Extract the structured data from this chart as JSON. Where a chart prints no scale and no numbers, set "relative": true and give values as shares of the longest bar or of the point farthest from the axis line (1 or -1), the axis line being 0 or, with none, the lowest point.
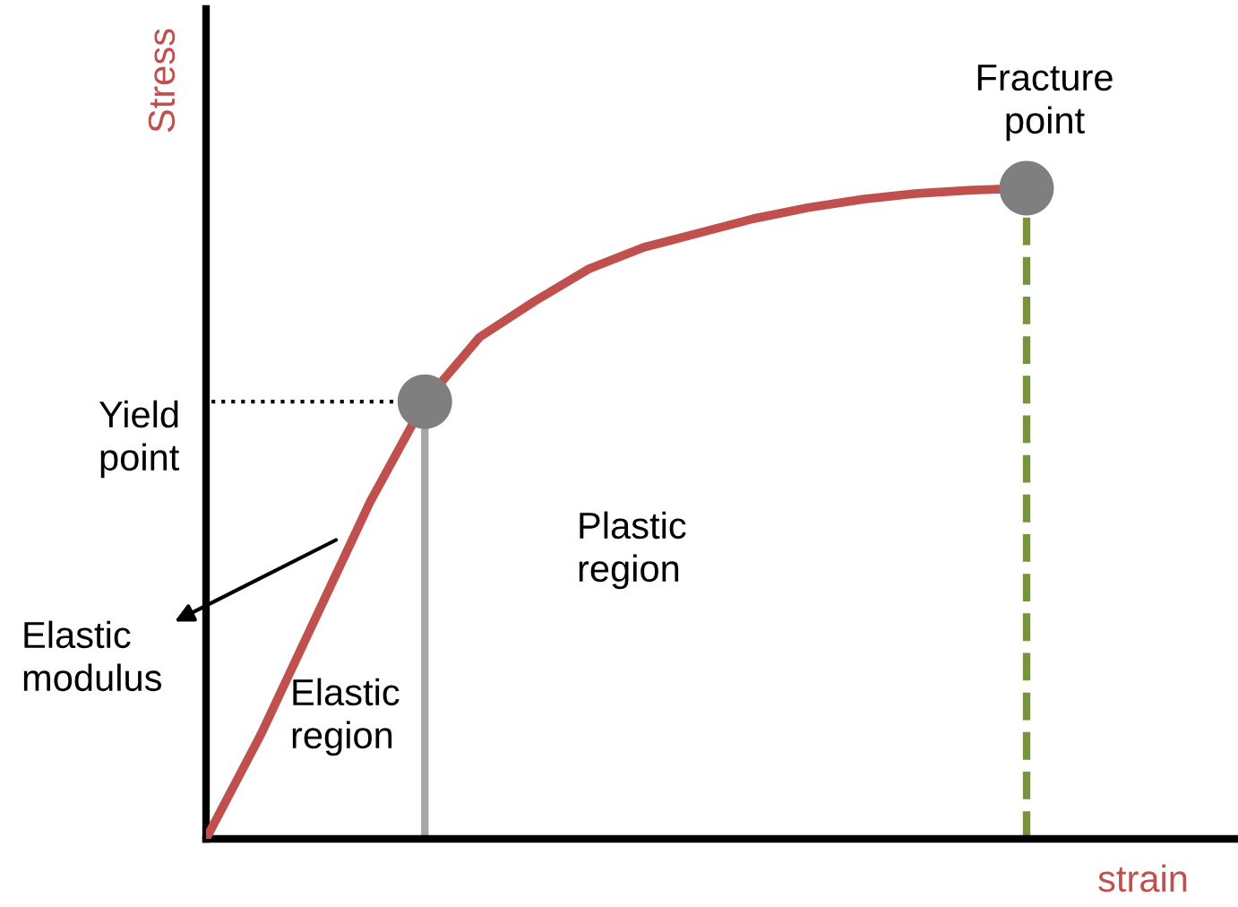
{
  "chart_data": {
    "type": "line",
    "relative": true,
    "xlabel": "strain",
    "ylabel": "Stress",
    "categories": [
      null,
      null,
      null,
      null,
      null,
      null,
      null,
      null,
      null,
      null,
      null,
      null,
      null,
      null,
      null,
      null
    ],
    "series": [
      {
        "color": "#c0504d",
        "values": [
          0,
          0.16,
          0.339,
          0.518,
          0.672,
          0.771,
          0.826,
          0.876,
          0.909,
          0.931,
          0.953,
          0.97,
          0.983,
          0.992,
          0.997,
          1
        ]
      }
    ],
    "ref_lines": [
      {
        "axis": "y",
        "value": 0.672,
        "label": "Yield\npoint",
        "color": "#000000",
        "line_style": "dotted"
      }
    ],
    "annotations": [
      "Fracture\npoint",
      "Elastic\nmodulus",
      "Elastic\nregion",
      "Plastic\nregion"
    ],
    "grid": false,
    "legend": false
  }
}
